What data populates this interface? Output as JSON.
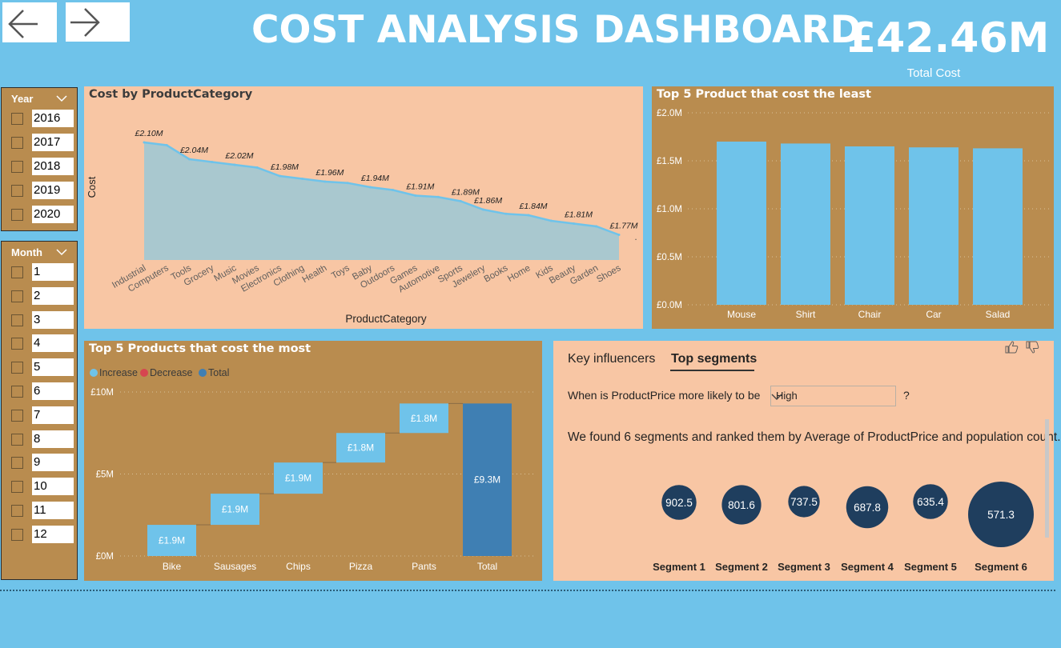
{
  "header": {
    "title": "COST ANALYSIS DASHBOARD",
    "kpi_value": "£42.46M",
    "kpi_label": "Total Cost"
  },
  "colors": {
    "page_bg": "#6fc3ea",
    "panel_tan": "#b98c4f",
    "panel_peach": "#f8c6a4",
    "bar_light_blue": "#6fc3ea",
    "total_blue": "#3f7fb3",
    "decrease_red": "#d64550",
    "segment_navy": "#1f3e5e"
  },
  "slicers": {
    "year": {
      "label": "Year",
      "items": [
        "2016",
        "2017",
        "2018",
        "2019",
        "2020"
      ]
    },
    "month": {
      "label": "Month",
      "items": [
        "1",
        "2",
        "3",
        "4",
        "5",
        "6",
        "7",
        "8",
        "9",
        "10",
        "11",
        "12"
      ]
    }
  },
  "area_panel": {
    "title": "Cost by ProductCategory",
    "ellipsis": "."
  },
  "least_panel": {
    "title": "Top 5 Product that cost the least"
  },
  "most_panel": {
    "title": "Top 5 Products that cost the most"
  },
  "key_influencers": {
    "tab_1": "Key influencers",
    "tab_2": "Top segments",
    "question": "When is ProductPrice more likely to be",
    "selected_value": "High",
    "question_mark": "?",
    "summary": "We found 6 segments and ranked them by Average of ProductPrice and population count."
  },
  "chart_data": [
    {
      "type": "area",
      "title": "Cost by ProductCategory",
      "xlabel": "ProductCategory",
      "ylabel": "Cost",
      "categories": [
        "Industrial",
        "Computers",
        "Tools",
        "Grocery",
        "Music",
        "Movies",
        "Electronics",
        "Clothing",
        "Health",
        "Toys",
        "Baby",
        "Outdoors",
        "Games",
        "Automotive",
        "Sports",
        "Jewelery",
        "Books",
        "Home",
        "Kids",
        "Beauty",
        "Garden",
        "Shoes"
      ],
      "values": [
        2.1,
        2.09,
        2.04,
        2.03,
        2.02,
        2.01,
        1.98,
        1.97,
        1.96,
        1.955,
        1.94,
        1.93,
        1.91,
        1.905,
        1.89,
        1.86,
        1.845,
        1.84,
        1.82,
        1.81,
        1.8,
        1.77
      ],
      "data_labels": [
        "£2.10M",
        "",
        "£2.04M",
        "",
        "£2.02M",
        "",
        "£1.98M",
        "",
        "£1.96M",
        "",
        "£1.94M",
        "",
        "£1.91M",
        "",
        "£1.89M",
        "£1.86M",
        "",
        "£1.84M",
        "",
        "£1.81M",
        "",
        "£1.77M"
      ],
      "unit": "£M"
    },
    {
      "type": "bar",
      "title": "Top 5 Product that cost the least",
      "categories": [
        "Mouse",
        "Shirt",
        "Chair",
        "Car",
        "Salad"
      ],
      "values": [
        1.7,
        1.68,
        1.65,
        1.64,
        1.63
      ],
      "ylim": [
        0,
        2.0
      ],
      "y_ticks": [
        "£0.0M",
        "£0.5M",
        "£1.0M",
        "£1.5M",
        "£2.0M"
      ],
      "grid": true
    },
    {
      "type": "waterfall",
      "title": "Top 5 Products that cost the most",
      "legend": [
        "Increase",
        "Decrease",
        "Total"
      ],
      "legend_position": "top-left",
      "categories": [
        "Bike",
        "Sausages",
        "Chips",
        "Pizza",
        "Pants",
        "Total"
      ],
      "values": [
        1.9,
        1.9,
        1.9,
        1.8,
        1.8,
        9.3
      ],
      "data_labels": [
        "£1.9M",
        "£1.9M",
        "£1.9M",
        "£1.8M",
        "£1.8M",
        "£9.3M"
      ],
      "ylim": [
        0,
        10
      ],
      "y_ticks": [
        "£0M",
        "£5M",
        "£10M"
      ],
      "grid": true
    },
    {
      "type": "bubble",
      "title": "Top segments",
      "categories": [
        "Segment 1",
        "Segment 2",
        "Segment 3",
        "Segment 4",
        "Segment 5",
        "Segment 6"
      ],
      "values": [
        902.5,
        801.6,
        737.5,
        687.8,
        635.4,
        571.3
      ],
      "value_labels": [
        "902.5",
        "801.6",
        "737.5",
        "687.8",
        "635.4",
        "571.3"
      ],
      "population_relative": [
        0.53,
        0.6,
        0.48,
        0.64,
        0.53,
        1.0
      ]
    }
  ]
}
